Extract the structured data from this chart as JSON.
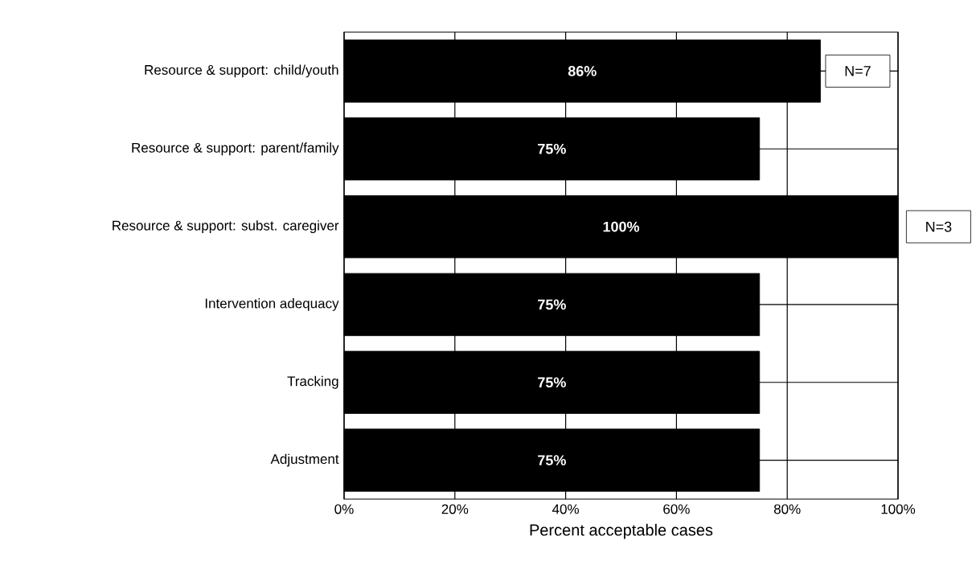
{
  "chart_data": {
    "type": "bar",
    "orientation": "horizontal",
    "xlabel": "Percent acceptable cases",
    "categories": [
      "Resource & support: child/youth",
      "Resource & support: parent/family",
      "Resource & support: subst. caregiver",
      "Intervention adequacy",
      "Tracking",
      "Adjustment"
    ],
    "values": [
      86,
      75,
      100,
      75,
      75,
      75
    ],
    "value_labels": [
      "86%",
      "75%",
      "100%",
      "75%",
      "75%",
      "75%"
    ],
    "color": "#000000",
    "xlim": [
      0,
      100
    ],
    "xticks": [
      {
        "value": 0,
        "label": "0%"
      },
      {
        "value": 20,
        "label": "20%"
      },
      {
        "value": 40,
        "label": "40%"
      },
      {
        "value": 60,
        "label": "60%"
      },
      {
        "value": 80,
        "label": "80%"
      },
      {
        "value": 100,
        "label": "100%"
      }
    ],
    "grid": true,
    "annotations": [
      {
        "text": "N=7",
        "x": 86,
        "y": "Resource & support: child/youth"
      },
      {
        "text": "N=3",
        "x": 100,
        "y": "Resource & support: subst. caregiver"
      }
    ]
  }
}
